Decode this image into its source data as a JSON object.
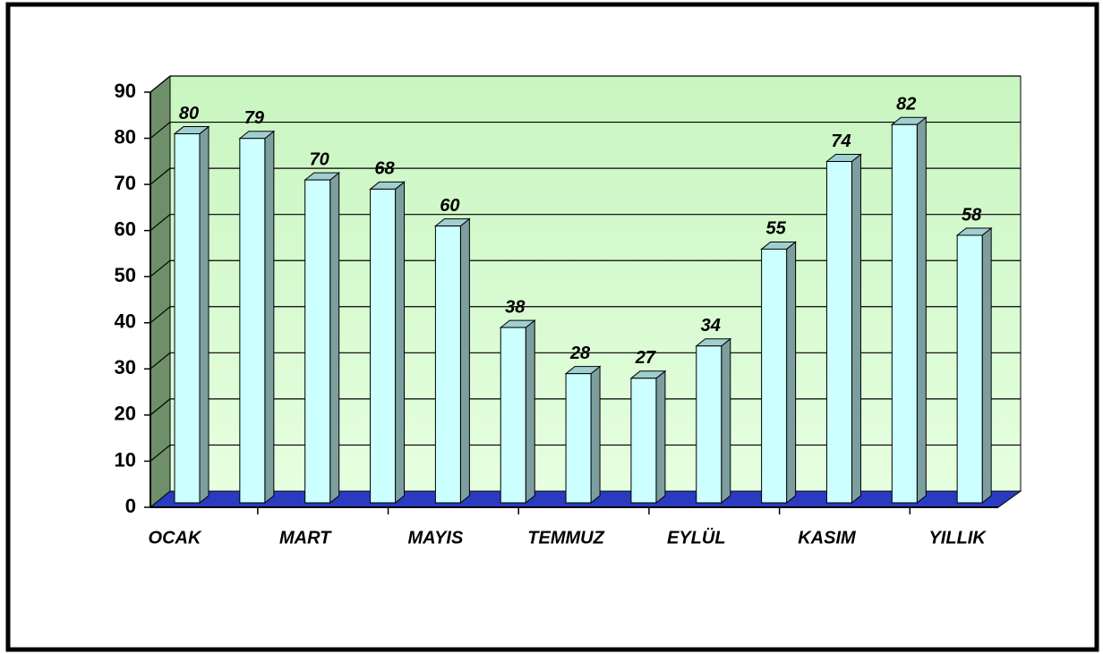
{
  "chart_data": {
    "type": "bar3d",
    "categories": [
      "OCAK",
      null,
      "MART",
      null,
      "MAYIS",
      null,
      "TEMMUZ",
      null,
      "EYLÜL",
      null,
      "KASIM",
      null,
      "YILLIK"
    ],
    "values": [
      80,
      79,
      70,
      68,
      60,
      38,
      28,
      27,
      34,
      55,
      74,
      82,
      58
    ],
    "color": "#ccffff",
    "ylim": [
      0,
      90
    ],
    "yticks": [
      0,
      10,
      20,
      30,
      40,
      50,
      60,
      70,
      80,
      90
    ],
    "grid": true
  }
}
